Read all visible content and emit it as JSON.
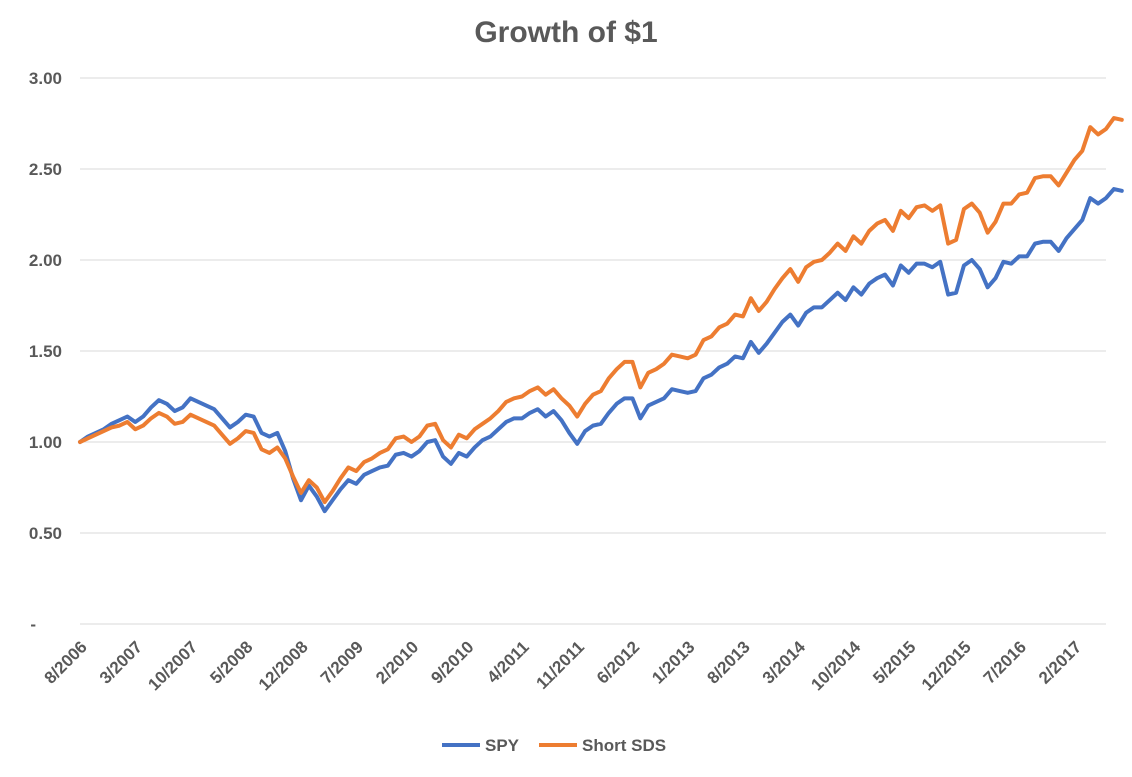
{
  "colors": {
    "spy": "#4472c4",
    "short_sds": "#ed7d31",
    "grid": "#d9d9d9",
    "text": "#595959"
  },
  "chart_data": {
    "type": "line",
    "title": "Growth of $1",
    "xlabel": "",
    "ylabel": "",
    "ylim": [
      0,
      3
    ],
    "yticks": [
      {
        "value": 0,
        "label": "-"
      },
      {
        "value": 0.5,
        "label": "0.50"
      },
      {
        "value": 1.0,
        "label": "1.00"
      },
      {
        "value": 1.5,
        "label": "1.50"
      },
      {
        "value": 2.0,
        "label": "2.00"
      },
      {
        "value": 2.5,
        "label": "2.50"
      },
      {
        "value": 3.0,
        "label": "3.00"
      }
    ],
    "xticks": [
      {
        "index": 0,
        "label": "8/2006"
      },
      {
        "index": 7,
        "label": "3/2007"
      },
      {
        "index": 14,
        "label": "10/2007"
      },
      {
        "index": 21,
        "label": "5/2008"
      },
      {
        "index": 28,
        "label": "12/2008"
      },
      {
        "index": 35,
        "label": "7/2009"
      },
      {
        "index": 42,
        "label": "2/2010"
      },
      {
        "index": 49,
        "label": "9/2010"
      },
      {
        "index": 56,
        "label": "4/2011"
      },
      {
        "index": 63,
        "label": "11/2011"
      },
      {
        "index": 70,
        "label": "6/2012"
      },
      {
        "index": 77,
        "label": "1/2013"
      },
      {
        "index": 84,
        "label": "8/2013"
      },
      {
        "index": 91,
        "label": "3/2014"
      },
      {
        "index": 98,
        "label": "10/2014"
      },
      {
        "index": 105,
        "label": "5/2015"
      },
      {
        "index": 112,
        "label": "12/2015"
      },
      {
        "index": 119,
        "label": "7/2016"
      },
      {
        "index": 126,
        "label": "2/2017"
      }
    ],
    "n_points": 131,
    "legend_position": "bottom",
    "grid": true,
    "series": [
      {
        "name": "SPY",
        "values": [
          1.0,
          1.03,
          1.05,
          1.07,
          1.1,
          1.12,
          1.14,
          1.11,
          1.14,
          1.19,
          1.23,
          1.21,
          1.17,
          1.19,
          1.24,
          1.22,
          1.2,
          1.18,
          1.13,
          1.08,
          1.11,
          1.15,
          1.14,
          1.05,
          1.03,
          1.05,
          0.95,
          0.8,
          0.68,
          0.76,
          0.7,
          0.62,
          0.68,
          0.74,
          0.79,
          0.77,
          0.82,
          0.84,
          0.86,
          0.87,
          0.93,
          0.94,
          0.92,
          0.95,
          1.0,
          1.01,
          0.92,
          0.88,
          0.94,
          0.92,
          0.97,
          1.01,
          1.03,
          1.07,
          1.11,
          1.13,
          1.13,
          1.16,
          1.18,
          1.14,
          1.17,
          1.12,
          1.05,
          0.99,
          1.06,
          1.09,
          1.1,
          1.16,
          1.21,
          1.24,
          1.24,
          1.13,
          1.2,
          1.22,
          1.24,
          1.29,
          1.28,
          1.27,
          1.28,
          1.35,
          1.37,
          1.41,
          1.43,
          1.47,
          1.46,
          1.55,
          1.49,
          1.54,
          1.6,
          1.66,
          1.7,
          1.64,
          1.71,
          1.74,
          1.74,
          1.78,
          1.82,
          1.78,
          1.85,
          1.81,
          1.87,
          1.9,
          1.92,
          1.86,
          1.97,
          1.93,
          1.98,
          1.98,
          1.96,
          1.99,
          1.81,
          1.82,
          1.97,
          2.0,
          1.95,
          1.85,
          1.9,
          1.99,
          1.98,
          2.02,
          2.02,
          2.09,
          2.1,
          2.1,
          2.05,
          2.12,
          2.17,
          2.22,
          2.34,
          2.31,
          2.34,
          2.39,
          2.38
        ]
      },
      {
        "name": "Short SDS",
        "values": [
          1.0,
          1.02,
          1.04,
          1.06,
          1.08,
          1.09,
          1.11,
          1.07,
          1.09,
          1.13,
          1.16,
          1.14,
          1.1,
          1.11,
          1.15,
          1.13,
          1.11,
          1.09,
          1.04,
          0.99,
          1.02,
          1.06,
          1.05,
          0.96,
          0.94,
          0.97,
          0.91,
          0.81,
          0.72,
          0.79,
          0.75,
          0.67,
          0.73,
          0.8,
          0.86,
          0.84,
          0.89,
          0.91,
          0.94,
          0.96,
          1.02,
          1.03,
          1.0,
          1.03,
          1.09,
          1.1,
          1.01,
          0.97,
          1.04,
          1.02,
          1.07,
          1.1,
          1.13,
          1.17,
          1.22,
          1.24,
          1.25,
          1.28,
          1.3,
          1.26,
          1.29,
          1.24,
          1.2,
          1.14,
          1.21,
          1.26,
          1.28,
          1.35,
          1.4,
          1.44,
          1.44,
          1.3,
          1.38,
          1.4,
          1.43,
          1.48,
          1.47,
          1.46,
          1.48,
          1.56,
          1.58,
          1.63,
          1.65,
          1.7,
          1.69,
          1.79,
          1.72,
          1.77,
          1.84,
          1.9,
          1.95,
          1.88,
          1.96,
          1.99,
          2.0,
          2.04,
          2.09,
          2.05,
          2.13,
          2.09,
          2.16,
          2.2,
          2.22,
          2.16,
          2.27,
          2.23,
          2.29,
          2.3,
          2.27,
          2.3,
          2.09,
          2.11,
          2.28,
          2.31,
          2.26,
          2.15,
          2.21,
          2.31,
          2.31,
          2.36,
          2.37,
          2.45,
          2.46,
          2.46,
          2.41,
          2.48,
          2.55,
          2.6,
          2.73,
          2.69,
          2.72,
          2.78,
          2.77
        ]
      }
    ]
  }
}
